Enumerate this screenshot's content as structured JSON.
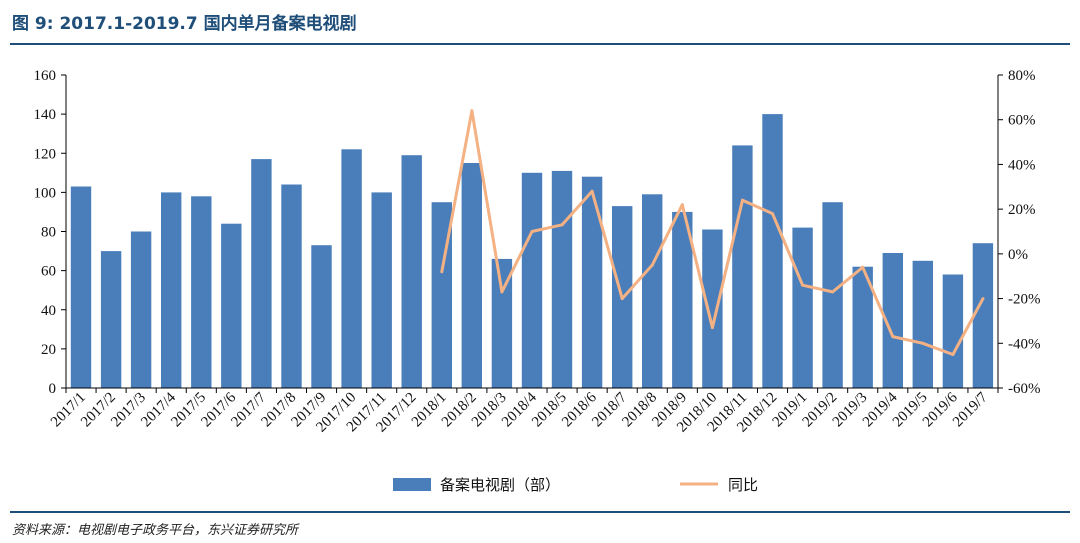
{
  "title": "图 9: 2017.1-2019.7 国内单月备案电视剧",
  "source": "资料来源：电视剧电子政务平台，东兴证券研究所",
  "colors": {
    "bar": "#4a7ebb",
    "line": "#f4b183",
    "axis": "#000000",
    "title": "#1f4e79"
  },
  "chart_data": {
    "type": "bar",
    "title": "图 9: 2017.1-2019.7 国内单月备案电视剧",
    "categories": [
      "2017/1",
      "2017/2",
      "2017/3",
      "2017/4",
      "2017/5",
      "2017/6",
      "2017/7",
      "2017/8",
      "2017/9",
      "2017/10",
      "2017/11",
      "2017/12",
      "2018/1",
      "2018/2",
      "2018/3",
      "2018/4",
      "2018/5",
      "2018/6",
      "2018/7",
      "2018/8",
      "2018/9",
      "2018/10",
      "2018/11",
      "2018/12",
      "2019/1",
      "2019/2",
      "2019/3",
      "2019/4",
      "2019/5",
      "2019/6",
      "2019/7"
    ],
    "series": [
      {
        "name": "备案电视剧（部）",
        "type": "bar",
        "axis": "left",
        "values": [
          103,
          70,
          80,
          100,
          98,
          84,
          117,
          104,
          73,
          122,
          100,
          119,
          95,
          115,
          66,
          110,
          111,
          108,
          93,
          99,
          90,
          81,
          124,
          140,
          82,
          95,
          62,
          69,
          65,
          58,
          74
        ]
      },
      {
        "name": "同比",
        "type": "line",
        "axis": "right",
        "unit": "%",
        "values": [
          null,
          null,
          null,
          null,
          null,
          null,
          null,
          null,
          null,
          null,
          null,
          null,
          -8,
          64,
          -17,
          10,
          13,
          28,
          -20,
          -5,
          22,
          -33,
          24,
          18,
          -14,
          -17,
          -6,
          -37,
          -40,
          -45,
          -20
        ]
      }
    ],
    "y_left": {
      "ylim": [
        0,
        160
      ],
      "ticks": [
        0,
        20,
        40,
        60,
        80,
        100,
        120,
        140,
        160
      ],
      "tick_labels": [
        "0",
        "20",
        "40",
        "60",
        "80",
        "100",
        "120",
        "140",
        "160"
      ]
    },
    "y_right": {
      "ylim": [
        -60,
        80
      ],
      "ticks": [
        -60,
        -40,
        -20,
        0,
        20,
        40,
        60,
        80
      ],
      "tick_labels": [
        "-60%",
        "-40%",
        "-20%",
        "0%",
        "20%",
        "40%",
        "60%",
        "80%"
      ]
    },
    "legend": {
      "position": "bottom",
      "items": [
        "备案电视剧（部）",
        "同比"
      ]
    },
    "grid": false
  }
}
